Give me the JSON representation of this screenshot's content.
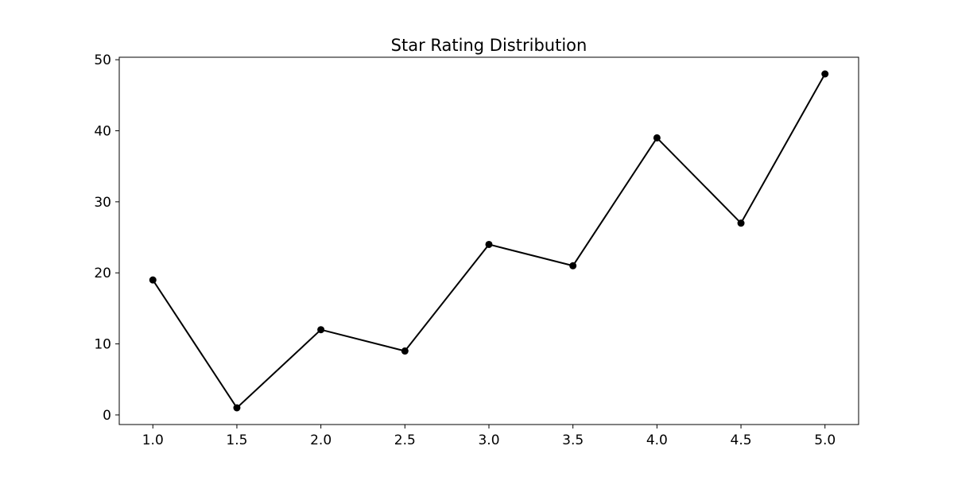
{
  "chart_data": {
    "type": "line",
    "title": "Star Rating Distribution",
    "xlabel": "",
    "ylabel": "",
    "x": [
      1.0,
      1.5,
      2.0,
      2.5,
      3.0,
      3.5,
      4.0,
      4.5,
      5.0
    ],
    "series": [
      {
        "values": [
          19,
          1,
          12,
          9,
          24,
          21,
          39,
          27,
          48
        ],
        "color": "#000000",
        "marker": "circle"
      }
    ],
    "xlim": [
      0.8,
      5.2
    ],
    "ylim": [
      -1.35,
      50.35
    ],
    "xticks": [
      1.0,
      1.5,
      2.0,
      2.5,
      3.0,
      3.5,
      4.0,
      4.5,
      5.0
    ],
    "xtick_labels": [
      "1.0",
      "1.5",
      "2.0",
      "2.5",
      "3.0",
      "3.5",
      "4.0",
      "4.5",
      "5.0"
    ],
    "yticks": [
      0,
      10,
      20,
      30,
      40,
      50
    ],
    "ytick_labels": [
      "0",
      "10",
      "20",
      "30",
      "40",
      "50"
    ],
    "grid": false,
    "legend": "none"
  }
}
